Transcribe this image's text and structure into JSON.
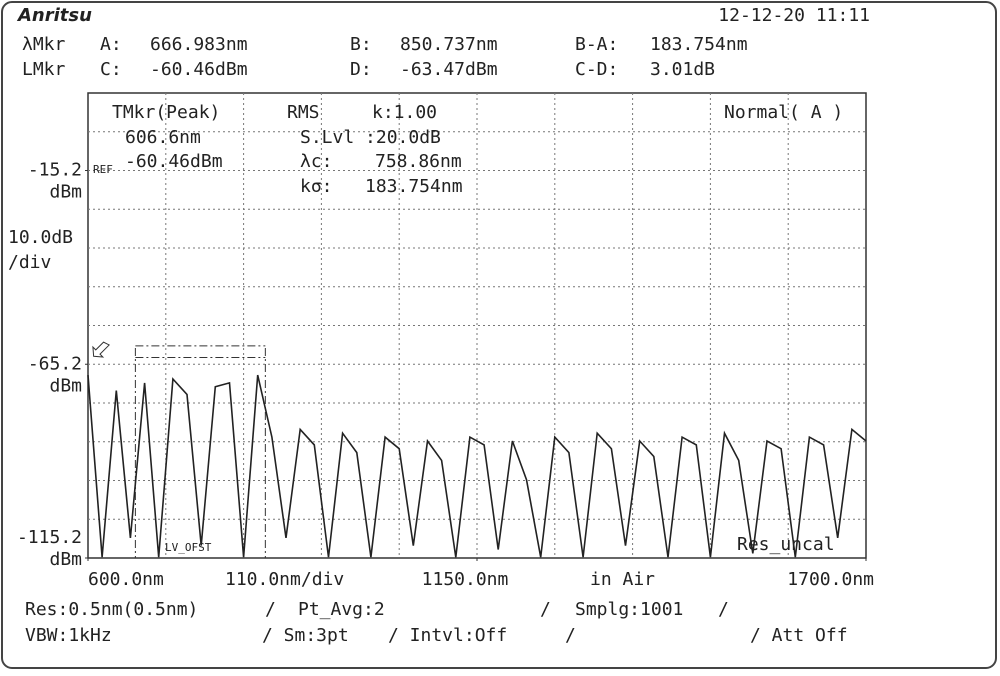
{
  "header": {
    "logo": "Anritsu",
    "datetime": "12-12-20 11:11"
  },
  "markers": {
    "row_labels": [
      "λMkr",
      "LMkr"
    ],
    "items": [
      {
        "name": "A:",
        "value": 666.983,
        "label": "666.983nm",
        "axis": "x"
      },
      {
        "name": "B:",
        "value": 850.737,
        "label": "850.737nm",
        "axis": "x"
      },
      {
        "name": "B-A:",
        "value": 183.754,
        "label": "183.754nm"
      },
      {
        "name": "C:",
        "value": -60.46,
        "label": "-60.46dBm",
        "axis": "y"
      },
      {
        "name": "D:",
        "value": -63.47,
        "label": "-63.47dBm",
        "axis": "y"
      },
      {
        "name": "C-D:",
        "value": 3.01,
        "label": "3.01dB"
      }
    ]
  },
  "chart_data": {
    "type": "line",
    "x": [
      600,
      620,
      640,
      660,
      680,
      700,
      720,
      740,
      760,
      780,
      800,
      820,
      840,
      860,
      880,
      900,
      920,
      940,
      960,
      980,
      1000,
      1020,
      1040,
      1060,
      1080,
      1100,
      1120,
      1140,
      1160,
      1180,
      1200,
      1220,
      1240,
      1260,
      1280,
      1300,
      1320,
      1340,
      1360,
      1380,
      1400,
      1420,
      1440,
      1460,
      1480,
      1500,
      1520,
      1540,
      1560,
      1580,
      1600,
      1620,
      1640,
      1660,
      1680,
      1700
    ],
    "series": [
      {
        "color": "#222222",
        "values": [
          -68,
          -115,
          -72,
          -110,
          -70,
          -115,
          -69,
          -73,
          -112,
          -71,
          -70,
          -115,
          -68,
          -84,
          -110,
          -82,
          -86,
          -115,
          -83,
          -88,
          -115,
          -84,
          -87,
          -112,
          -85,
          -90,
          -115,
          -84,
          -86,
          -113,
          -85,
          -95,
          -115,
          -84,
          -88,
          -115,
          -83,
          -87,
          -112,
          -85,
          -89,
          -115,
          -84,
          -86,
          -115,
          -83,
          -90,
          -114,
          -85,
          -87,
          -115,
          -84,
          -86,
          -110,
          -82,
          -85
        ]
      }
    ],
    "xlim": [
      600,
      1700
    ],
    "ylim": [
      -115.2,
      4.8
    ],
    "xticks": [
      {
        "value": 600,
        "label": "600.0nm"
      },
      {
        "value": 1150,
        "label": "1150.0nm"
      },
      {
        "value": 1700,
        "label": "1700.0nm"
      }
    ],
    "yticks": [
      -15.2,
      -65.2,
      -115.2
    ],
    "y_unit": "dBm",
    "ref_label": "REF",
    "scale_label": [
      "10.0dB",
      "/div"
    ],
    "x_scale_label": "110.0nm/div",
    "medium": "in Air"
  },
  "analysis": {
    "tmkr": "TMkr(Peak)",
    "tmkr_wavelength": "606.6nm",
    "tmkr_level": "-60.46dBm",
    "method": "RMS",
    "k": "k:1.00",
    "slice_level": "S.Lvl  :20.0dB",
    "center_label": "λc:",
    "center_value": "758.86nm",
    "width_label": "kσ:",
    "width_value": "183.754nm",
    "mode": "Normal( A )",
    "lv_offset": "LV_OFST",
    "res_uncal": "Res_uncal"
  },
  "footer": {
    "row1": [
      "Res:0.5nm(0.5nm)",
      "/",
      "Pt_Avg:2",
      "/",
      "Smplg:1001",
      "/"
    ],
    "row2": [
      "VBW:1kHz",
      "/ Sm:3pt",
      "/ Intvl:Off",
      "/",
      "/ Att Off"
    ]
  }
}
